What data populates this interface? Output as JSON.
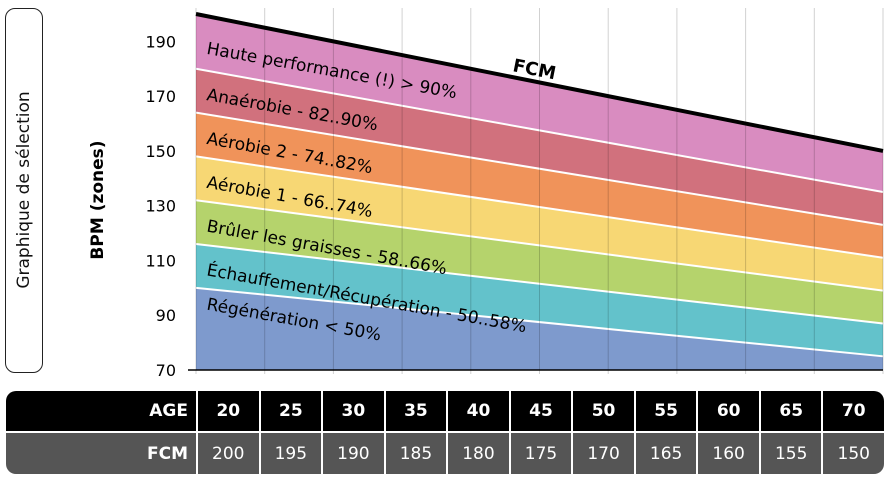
{
  "side_label": "Graphique de sélection",
  "chart_data": {
    "type": "area",
    "ylabel": "BPM (zones)",
    "ylim": [
      70,
      200
    ],
    "yticks": [
      70,
      90,
      110,
      130,
      150,
      170,
      190
    ],
    "x": [
      20,
      25,
      30,
      35,
      40,
      45,
      50,
      55,
      60,
      65,
      70
    ],
    "fcm_label": "FCM",
    "fcm_values": [
      200,
      195,
      190,
      185,
      180,
      175,
      170,
      165,
      160,
      155,
      150
    ],
    "bands": [
      {
        "name": "Régénération  < 50%",
        "lo": 0.0,
        "hi": 0.5,
        "color": "#7e9acd"
      },
      {
        "name": "Échauffement/Récupération - 50..58%",
        "lo": 0.5,
        "hi": 0.58,
        "color": "#63c2cb"
      },
      {
        "name": "Brûler les graisses - 58..66%",
        "lo": 0.58,
        "hi": 0.66,
        "color": "#b5d36c"
      },
      {
        "name": "Aérobie 1 - 66..74%",
        "lo": 0.66,
        "hi": 0.74,
        "color": "#f7d774"
      },
      {
        "name": "Aérobie 2 - 74..82%",
        "lo": 0.74,
        "hi": 0.82,
        "color": "#f0935a"
      },
      {
        "name": "Anaérobie - 82..90%",
        "lo": 0.82,
        "hi": 0.9,
        "color": "#d1717d"
      },
      {
        "name": "Haute performance  (!)  > 90%",
        "lo": 0.9,
        "hi": 1.0,
        "color": "#d98cc0"
      }
    ],
    "grid": true
  },
  "table": {
    "age_header": "AGE",
    "fcm_header": "FCM",
    "ages": [
      "20",
      "25",
      "30",
      "35",
      "40",
      "45",
      "50",
      "55",
      "60",
      "65",
      "70"
    ],
    "fcms": [
      "200",
      "195",
      "190",
      "185",
      "180",
      "175",
      "170",
      "165",
      "160",
      "155",
      "150"
    ]
  }
}
